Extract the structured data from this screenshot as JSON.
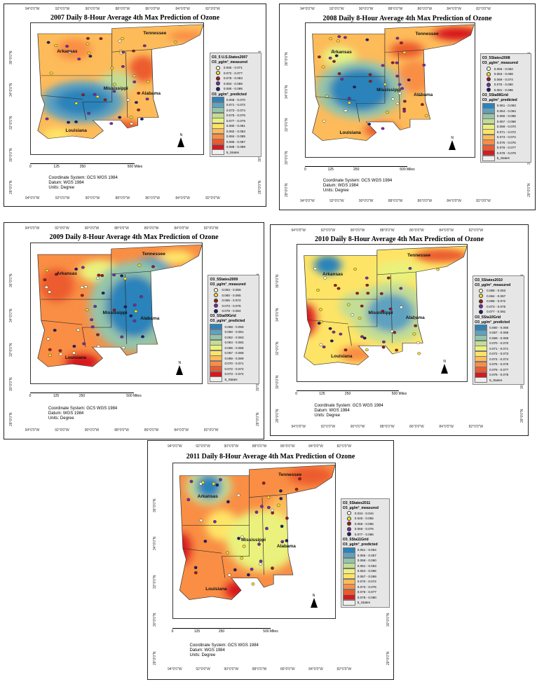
{
  "common": {
    "lon_labels": [
      "94°0'0\"W",
      "92°0'0\"W",
      "90°0'0\"W",
      "88°0'0\"W",
      "86°0'0\"W",
      "84°0'0\"W",
      "82°0'0\"W"
    ],
    "lat_labels": [
      "36°0'0\"N",
      "34°0'0\"N",
      "32°0'0\"N",
      "30°0'0\"N",
      "28°0'0\"N"
    ],
    "states": [
      "Arkansas",
      "Tennessee",
      "Mississippi",
      "Alabama",
      "Louisiana"
    ],
    "scale_labels": [
      "0",
      "125",
      "250",
      "500 Miles"
    ],
    "coord_system": "Coordinate System: GCS WGS 1984",
    "datum": "Datum: WGS 1984",
    "units": "Units: Degree",
    "north": "N",
    "states_layer": "5_States",
    "measured_colors": [
      "#fffde0",
      "#f2e12a",
      "#9e1b1b",
      "#7a2aa5",
      "#1a1f6e"
    ],
    "predicted_colors": [
      "#2b83ba",
      "#5fa2c0",
      "#94c4a9",
      "#c2dd94",
      "#eaf17c",
      "#fee466",
      "#fdbb5a",
      "#f98e44",
      "#ec5b2f",
      "#d7191c"
    ]
  },
  "maps": [
    {
      "title": "2007 Daily 8-Hour Average 4th Max Prediction of Ozone",
      "layer": "O3_5 U.S.States2007",
      "measured_title": "O3_µg/m³_measured",
      "grid_layer": "",
      "predicted_title": "O3_µg/m³_predicted",
      "measured": [
        "0.065 - 0.071",
        "0.072 - 0.077",
        "0.078 - 0.083",
        "0.084 - 0.089",
        "0.090 - 0.095"
      ],
      "predicted": [
        "0.068 - 0.070",
        "0.071 - 0.072",
        "0.073 - 0.074",
        "0.075 - 0.076",
        "0.077 - 0.079",
        "0.080 - 0.081",
        "0.082 - 0.083",
        "0.084 - 0.085",
        "0.086 - 0.087",
        "0.088 - 0.089"
      ]
    },
    {
      "title": "2008 Daily 8-Hour Average 4th Max Prediction of Ozone",
      "layer": "O3_5States2008",
      "measured_title": "O3_µg/m³_measured",
      "grid_layer": "O3_5Sta08Grid",
      "predicted_title": "O3_µg/m³_predicted",
      "measured": [
        "0.056 - 0.062",
        "0.063 - 0.068",
        "0.069 - 0.074",
        "0.075 - 0.080",
        "0.081 - 0.086"
      ],
      "predicted": [
        "0.061 - 0.063",
        "0.064 - 0.064",
        "0.065 - 0.066",
        "0.067 - 0.068",
        "0.069 - 0.070",
        "0.071 - 0.072",
        "0.073 - 0.074",
        "0.075 - 0.075",
        "0.076 - 0.077",
        "0.078 - 0.079"
      ]
    },
    {
      "title": "2009 Daily 8-Hour Average 4th Max Prediction of Ozone",
      "layer": "O3_5States2009",
      "measured_title": "O3_µg/m³_measured",
      "grid_layer": "O3_5Sta09Grid",
      "predicted_title": "O3_µg/m³_predicted",
      "measured": [
        "0.053 - 0.059",
        "0.060 - 0.065",
        "0.066 - 0.072",
        "0.073 - 0.078",
        "0.079 - 0.084"
      ],
      "predicted": [
        "0.058 - 0.059",
        "0.060 - 0.061",
        "0.062 - 0.063",
        "0.064 - 0.064",
        "0.065 - 0.066",
        "0.067 - 0.068",
        "0.069 - 0.069",
        "0.070 - 0.071",
        "0.072 - 0.072",
        "0.073 - 0.074"
      ]
    },
    {
      "title": "2010 Daily 8-Hour Average 4th Max Prediction of Ozone",
      "layer": "O3_5States2010",
      "measured_title": "O3_µg/m³_measured",
      "grid_layer": "O3_5Sta10Grid",
      "predicted_title": "O3_µg/m³_predicted",
      "measured": [
        "0.058 - 0.063",
        "0.064 - 0.067",
        "0.068 - 0.072",
        "0.073 - 0.076",
        "0.077 - 0.081"
      ],
      "predicted": [
        "0.060 - 0.066",
        "0.067 - 0.068",
        "0.069 - 0.069",
        "0.070 - 0.070",
        "0.071 - 0.071",
        "0.072 - 0.073",
        "0.074 - 0.074",
        "0.075 - 0.075",
        "0.076 - 0.077",
        "0.078 - 0.078"
      ]
    },
    {
      "title": "2011 Daily 8-Hour Average 4th Max Prediction of Ozone",
      "layer": "O3_5States2011",
      "measured_title": "O3_µg/m³_measured",
      "grid_layer": "O3_5Sta11Grid",
      "predicted_title": "O3_µg/m³_predicted",
      "measured": [
        "0.034 - 0.044",
        "0.045 - 0.055",
        "0.056 - 0.065",
        "0.066 - 0.076",
        "0.077 - 0.086"
      ],
      "predicted": [
        "0.051 - 0.054",
        "0.055 - 0.057",
        "0.058 - 0.060",
        "0.061 - 0.063",
        "0.064 - 0.066",
        "0.067 - 0.069",
        "0.070 - 0.072",
        "0.073 - 0.075",
        "0.076 - 0.077",
        "0.078 - 0.080"
      ]
    }
  ]
}
